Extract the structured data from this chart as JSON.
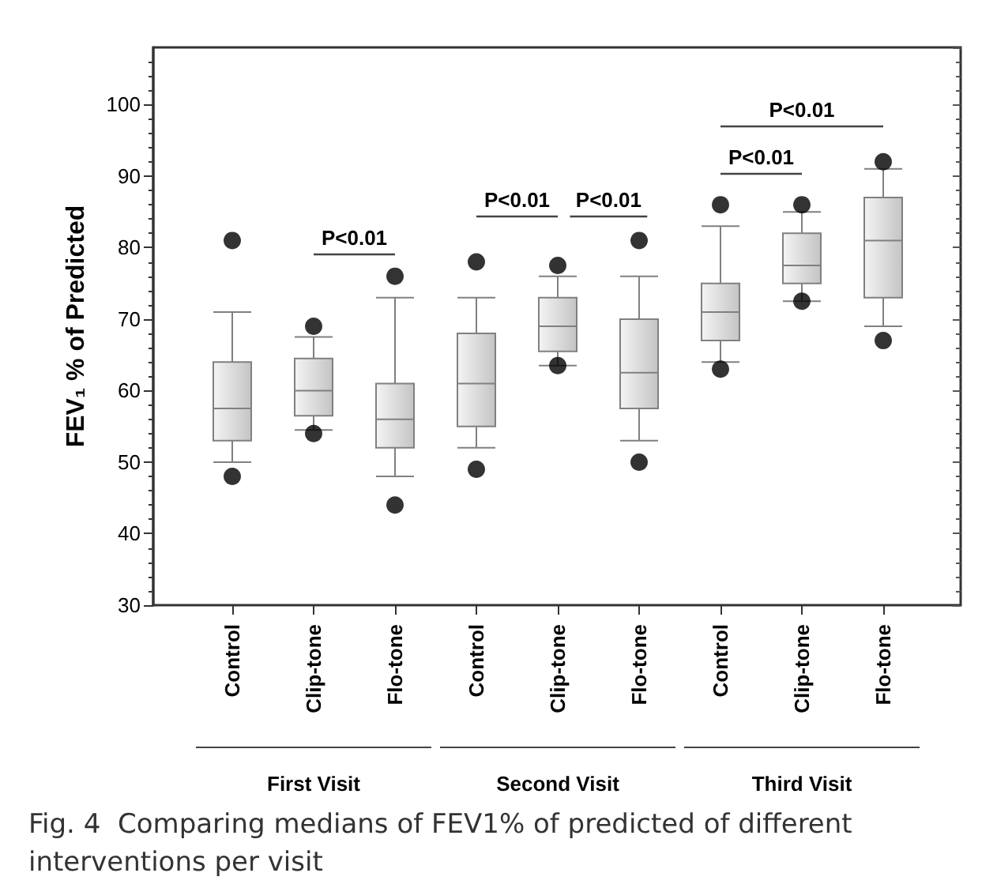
{
  "chart_data": {
    "type": "box",
    "ylabel": "FEV₁ % of Predicted",
    "categories": [
      "Control",
      "Clip-tone",
      "Flo-tone",
      "Control",
      "Clip-tone",
      "Flo-tone",
      "Control",
      "Clip-tone",
      "Flo-tone"
    ],
    "color": "#808080",
    "boxes": [
      {
        "low": 50,
        "q1": 53,
        "median": 57.5,
        "q3": 64,
        "high": 71,
        "outliers": [
          81,
          48
        ]
      },
      {
        "low": 54.5,
        "q1": 56.5,
        "median": 60,
        "q3": 64.5,
        "high": 67.5,
        "outliers": [
          69,
          54
        ]
      },
      {
        "low": 48,
        "q1": 52,
        "median": 56,
        "q3": 61,
        "high": 73,
        "outliers": [
          76,
          44
        ]
      },
      {
        "low": 52,
        "q1": 55,
        "median": 61,
        "q3": 68,
        "high": 73,
        "outliers": [
          78,
          49
        ]
      },
      {
        "low": 63.5,
        "q1": 65.5,
        "median": 69,
        "q3": 73,
        "high": 76,
        "outliers": [
          77.5,
          63.5
        ]
      },
      {
        "low": 53,
        "q1": 57.5,
        "median": 62.5,
        "q3": 70,
        "high": 76,
        "outliers": [
          81,
          50
        ]
      },
      {
        "low": 64,
        "q1": 67,
        "median": 71,
        "q3": 75,
        "high": 83,
        "outliers": [
          86,
          63
        ]
      },
      {
        "low": 72.5,
        "q1": 75,
        "median": 77.5,
        "q3": 82,
        "high": 85,
        "outliers": [
          86,
          72.5
        ]
      },
      {
        "low": 69,
        "q1": 73,
        "median": 81,
        "q3": 87,
        "high": 91,
        "outliers": [
          92,
          67
        ]
      }
    ],
    "ylim": [
      30,
      108
    ],
    "yticks": [
      30,
      40,
      50,
      60,
      70,
      80,
      90,
      100
    ],
    "grid": false,
    "annotations": [
      "P<0.01",
      "P<0.01",
      "P<0.01",
      "P<0.01",
      "P<0.01",
      "First Visit",
      "Second Visit",
      "Third Visit",
      "Fig. 4  Comparing medians of FEV1% of predicted of different interventions per visit"
    ]
  }
}
